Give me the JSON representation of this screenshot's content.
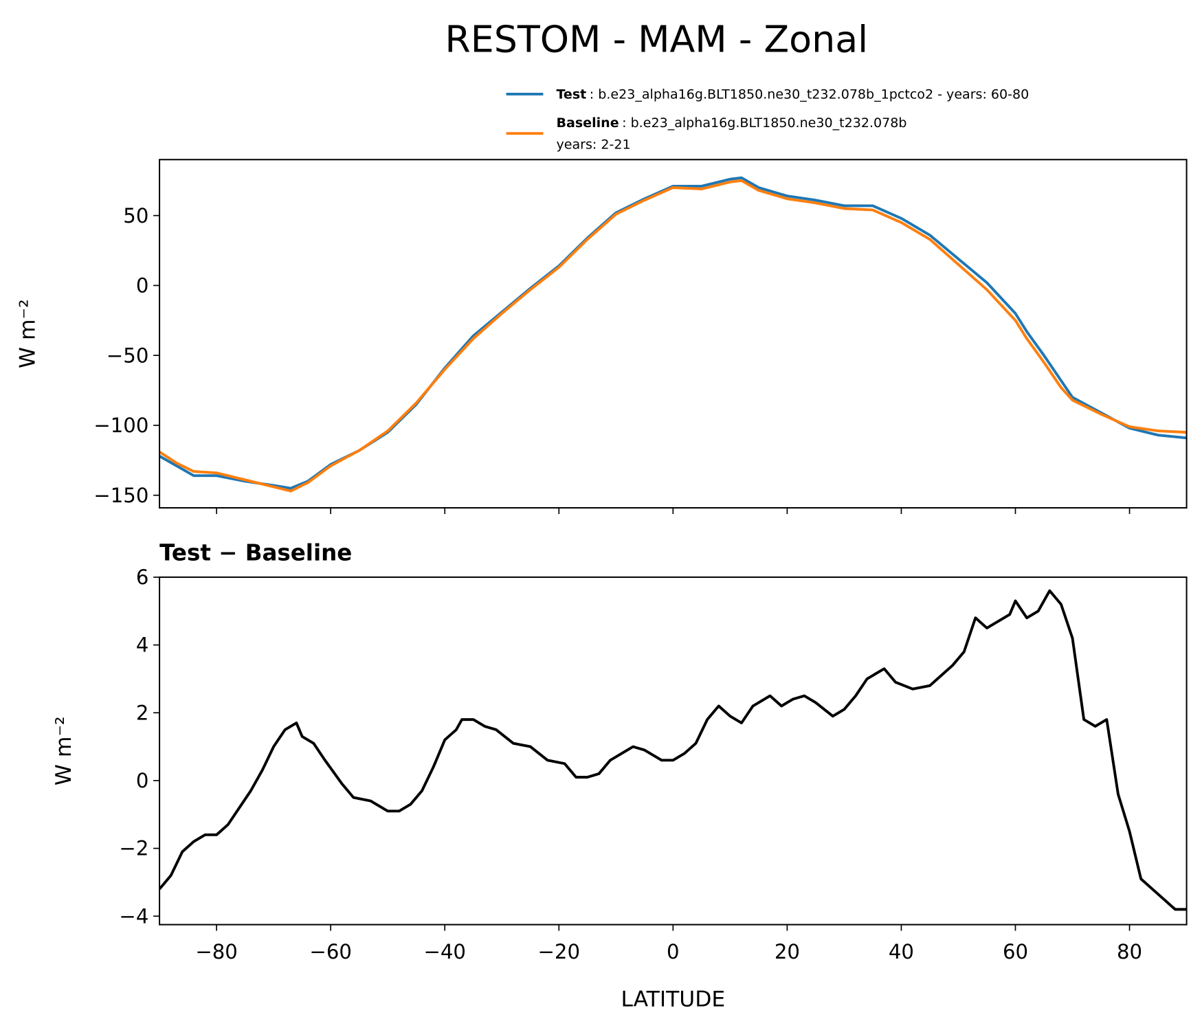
{
  "title": "RESTOM - MAM - Zonal",
  "chart_data": [
    {
      "type": "line",
      "ylabel": "W m⁻²",
      "x": [
        -90,
        -87,
        -84,
        -80,
        -75,
        -70,
        -67,
        -64,
        -60,
        -55,
        -50,
        -45,
        -40,
        -35,
        -30,
        -25,
        -20,
        -15,
        -10,
        -5,
        0,
        5,
        10,
        12,
        15,
        20,
        25,
        30,
        35,
        40,
        45,
        50,
        55,
        60,
        62,
        65,
        68,
        70,
        75,
        80,
        85,
        90
      ],
      "series": [
        {
          "name": "Test",
          "color": "#1f77b4",
          "legend_text": [
            ": b.e23_alpha16g.BLT1850.ne30_t232.078b_1pctco2 - years: 60-80"
          ],
          "values": [
            -122,
            -129,
            -136,
            -136,
            -140,
            -143,
            -145,
            -140,
            -128,
            -118,
            -105,
            -85,
            -59,
            -36,
            -19,
            -2,
            14,
            34,
            52,
            62,
            71,
            71,
            76,
            77,
            70,
            64,
            61,
            57,
            57,
            48,
            36,
            19,
            2,
            -20,
            -33,
            -50,
            -68,
            -80,
            -91,
            -102,
            -107,
            -109
          ]
        },
        {
          "name": "Baseline",
          "color": "#ff7f0e",
          "legend_text": [
            ": b.e23_alpha16g.BLT1850.ne30_t232.078b",
            "years: 2-21"
          ],
          "values": [
            -119,
            -127,
            -133,
            -134,
            -139,
            -144,
            -147,
            -141,
            -129,
            -118,
            -104,
            -84,
            -60,
            -38,
            -20,
            -3,
            13,
            33,
            51,
            61,
            70,
            69,
            74,
            75,
            68,
            62,
            59,
            55,
            54,
            45,
            33,
            15,
            -3,
            -25,
            -38,
            -55,
            -73,
            -82,
            -92,
            -101,
            -104,
            -105
          ]
        }
      ],
      "xlim": [
        -90,
        90
      ],
      "xticks": [
        -80,
        -60,
        -40,
        -20,
        0,
        20,
        40,
        60,
        80
      ],
      "ylim": [
        -159,
        90
      ],
      "yticks": [
        {
          "value": -150,
          "label": "−150"
        },
        {
          "value": -100,
          "label": "−100"
        },
        {
          "value": -50,
          "label": "−50"
        },
        0,
        50
      ]
    },
    {
      "type": "line",
      "title": "Test − Baseline",
      "xlabel": "LATITUDE",
      "ylabel": "W m⁻²",
      "x": [
        -90,
        -88,
        -86,
        -84,
        -82,
        -80,
        -78,
        -76,
        -74,
        -72,
        -70,
        -68,
        -66,
        -65,
        -63,
        -61,
        -58,
        -56,
        -53,
        -50,
        -48,
        -46,
        -44,
        -42,
        -40,
        -38,
        -37,
        -35,
        -33,
        -31,
        -28,
        -25,
        -22,
        -19,
        -17,
        -15,
        -13,
        -11,
        -9,
        -7,
        -5,
        -2,
        0,
        2,
        4,
        6,
        8,
        10,
        12,
        14,
        17,
        19,
        21,
        23,
        25,
        28,
        30,
        32,
        34,
        37,
        39,
        42,
        45,
        47,
        49,
        51,
        53,
        55,
        57,
        59,
        60,
        62,
        64,
        66,
        68,
        70,
        72,
        74,
        76,
        78,
        80,
        82,
        84,
        86,
        88,
        90
      ],
      "series": [
        {
          "color": "#000000",
          "values": [
            -3.2,
            -2.8,
            -2.1,
            -1.8,
            -1.6,
            -1.6,
            -1.3,
            -0.8,
            -0.3,
            0.3,
            1.0,
            1.5,
            1.7,
            1.3,
            1.1,
            0.6,
            -0.1,
            -0.5,
            -0.6,
            -0.9,
            -0.9,
            -0.7,
            -0.3,
            0.4,
            1.2,
            1.5,
            1.8,
            1.8,
            1.6,
            1.5,
            1.1,
            1.0,
            0.6,
            0.5,
            0.1,
            0.1,
            0.2,
            0.6,
            0.8,
            1.0,
            0.9,
            0.6,
            0.6,
            0.8,
            1.1,
            1.8,
            2.2,
            1.9,
            1.7,
            2.2,
            2.5,
            2.2,
            2.4,
            2.5,
            2.3,
            1.9,
            2.1,
            2.5,
            3.0,
            3.3,
            2.9,
            2.7,
            2.8,
            3.1,
            3.4,
            3.8,
            4.8,
            4.5,
            4.7,
            4.9,
            5.3,
            4.8,
            5.0,
            5.6,
            5.2,
            4.2,
            1.8,
            1.6,
            1.8,
            -0.4,
            -1.5,
            -2.9,
            -3.2,
            -3.5,
            -3.8,
            -3.8
          ]
        }
      ],
      "xlim": [
        -90,
        90
      ],
      "xticks": [
        {
          "value": -80,
          "label": "−80"
        },
        {
          "value": -60,
          "label": "−60"
        },
        {
          "value": -40,
          "label": "−40"
        },
        {
          "value": -20,
          "label": "−20"
        },
        0,
        20,
        40,
        60,
        80
      ],
      "ylim": [
        -4.25,
        6
      ],
      "yticks": [
        {
          "value": -4,
          "label": "−4"
        },
        {
          "value": -2,
          "label": "−2"
        },
        0,
        2,
        4,
        6
      ]
    }
  ]
}
